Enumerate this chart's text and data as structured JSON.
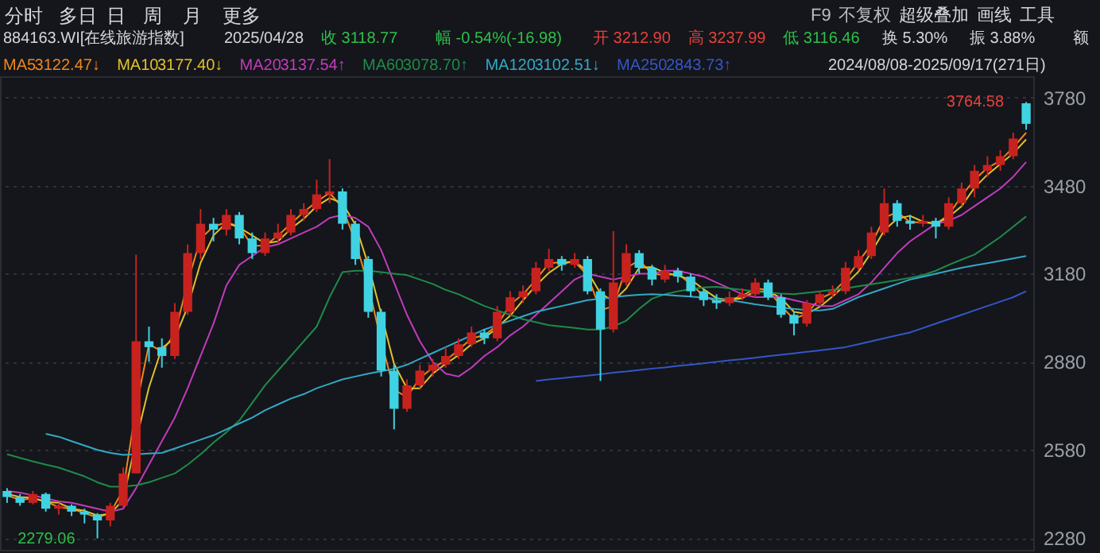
{
  "chart_data": {
    "type": "candlestick",
    "categories": [
      null,
      null,
      null,
      null,
      null,
      null,
      null,
      null,
      null,
      null,
      null,
      null,
      null,
      null,
      null,
      null,
      null,
      null,
      null,
      null,
      null,
      null,
      null,
      null,
      null,
      null,
      null,
      null,
      null,
      null,
      null,
      null,
      null,
      null,
      null,
      null,
      null,
      null,
      null,
      null,
      null,
      null,
      null,
      null,
      null,
      null,
      null,
      null,
      null,
      null,
      null,
      null,
      null,
      null,
      null,
      null,
      null,
      null,
      null,
      null,
      null,
      null,
      null,
      null,
      null,
      null,
      null,
      null,
      null,
      null,
      null,
      null,
      null,
      null,
      null,
      null,
      null,
      null,
      null,
      null
    ],
    "ohlc": [
      [
        2440,
        2450,
        2400,
        2420
      ],
      [
        2420,
        2430,
        2390,
        2400
      ],
      [
        2400,
        2440,
        2395,
        2430
      ],
      [
        2430,
        2435,
        2370,
        2380
      ],
      [
        2380,
        2400,
        2360,
        2390
      ],
      [
        2390,
        2395,
        2355,
        2370
      ],
      [
        2370,
        2380,
        2330,
        2360
      ],
      [
        2360,
        2365,
        2279.06,
        2340
      ],
      [
        2340,
        2400,
        2320,
        2390
      ],
      [
        2390,
        2520,
        2385,
        2500
      ],
      [
        2500,
        3245,
        2500,
        2950
      ],
      [
        2950,
        3000,
        2880,
        2930
      ],
      [
        2930,
        2960,
        2860,
        2900
      ],
      [
        2900,
        3080,
        2890,
        3050
      ],
      [
        3050,
        3280,
        3040,
        3250
      ],
      [
        3250,
        3400,
        3230,
        3350
      ],
      [
        3350,
        3370,
        3290,
        3330
      ],
      [
        3330,
        3400,
        3310,
        3380
      ],
      [
        3380,
        3390,
        3280,
        3300
      ],
      [
        3300,
        3320,
        3230,
        3250
      ],
      [
        3250,
        3320,
        3240,
        3300
      ],
      [
        3300,
        3350,
        3280,
        3320
      ],
      [
        3320,
        3400,
        3310,
        3380
      ],
      [
        3380,
        3420,
        3360,
        3400
      ],
      [
        3400,
        3500,
        3390,
        3450
      ],
      [
        3450,
        3570,
        3420,
        3460
      ],
      [
        3460,
        3470,
        3330,
        3350
      ],
      [
        3350,
        3360,
        3210,
        3230
      ],
      [
        3230,
        3240,
        3030,
        3050
      ],
      [
        3050,
        3060,
        2830,
        2850
      ],
      [
        2850,
        2870,
        2650,
        2720
      ],
      [
        2720,
        2820,
        2710,
        2800
      ],
      [
        2800,
        2870,
        2790,
        2850
      ],
      [
        2850,
        2890,
        2830,
        2870
      ],
      [
        2870,
        2930,
        2860,
        2900
      ],
      [
        2900,
        2960,
        2890,
        2940
      ],
      [
        2940,
        3000,
        2930,
        2980
      ],
      [
        2980,
        2990,
        2940,
        2960
      ],
      [
        2960,
        3070,
        2950,
        3050
      ],
      [
        3050,
        3120,
        3040,
        3100
      ],
      [
        3100,
        3140,
        3080,
        3120
      ],
      [
        3120,
        3220,
        3110,
        3200
      ],
      [
        3200,
        3265,
        3190,
        3230
      ],
      [
        3230,
        3240,
        3190,
        3210
      ],
      [
        3210,
        3250,
        3200,
        3230
      ],
      [
        3230,
        3240,
        3110,
        3120
      ],
      [
        3120,
        3130,
        2815,
        2990
      ],
      [
        2990,
        3325,
        2980,
        3150
      ],
      [
        3150,
        3280,
        3140,
        3250
      ],
      [
        3250,
        3260,
        3180,
        3200
      ],
      [
        3200,
        3210,
        3140,
        3160
      ],
      [
        3160,
        3210,
        3150,
        3190
      ],
      [
        3190,
        3200,
        3150,
        3170
      ],
      [
        3170,
        3180,
        3100,
        3120
      ],
      [
        3120,
        3130,
        3070,
        3090
      ],
      [
        3090,
        3110,
        3060,
        3080
      ],
      [
        3080,
        3120,
        3070,
        3100
      ],
      [
        3100,
        3130,
        3090,
        3110
      ],
      [
        3110,
        3165,
        3100,
        3150
      ],
      [
        3150,
        3160,
        3090,
        3100
      ],
      [
        3100,
        3110,
        3030,
        3040
      ],
      [
        3040,
        3050,
        2970,
        3010
      ],
      [
        3010,
        3090,
        3000,
        3080
      ],
      [
        3080,
        3120,
        3070,
        3110
      ],
      [
        3110,
        3140,
        3100,
        3120
      ],
      [
        3120,
        3220,
        3110,
        3200
      ],
      [
        3200,
        3260,
        3190,
        3240
      ],
      [
        3240,
        3340,
        3230,
        3320
      ],
      [
        3320,
        3470,
        3310,
        3420
      ],
      [
        3420,
        3430,
        3340,
        3360
      ],
      [
        3360,
        3380,
        3330,
        3350
      ],
      [
        3350,
        3380,
        3340,
        3360
      ],
      [
        3360,
        3370,
        3300,
        3340
      ],
      [
        3340,
        3440,
        3330,
        3420
      ],
      [
        3420,
        3490,
        3410,
        3470
      ],
      [
        3470,
        3550,
        3440,
        3530
      ],
      [
        3530,
        3580,
        3510,
        3550
      ],
      [
        3550,
        3600,
        3530,
        3580
      ],
      [
        3580,
        3660,
        3570,
        3640
      ],
      [
        3760,
        3764.58,
        3670,
        3690
      ]
    ],
    "colors": [
      "#3fd2e3",
      "#3fd2e3",
      "#c8221f",
      "#3fd2e3",
      "#c8221f",
      "#3fd2e3",
      "#3fd2e3",
      "#3fd2e3",
      "#c8221f",
      "#c8221f",
      "#c8221f",
      "#3fd2e3",
      "#3fd2e3",
      "#c8221f",
      "#c8221f",
      "#c8221f",
      "#3fd2e3",
      "#c8221f",
      "#3fd2e3",
      "#3fd2e3",
      "#c8221f",
      "#c8221f",
      "#c8221f",
      "#c8221f",
      "#c8221f",
      "#c8221f",
      "#3fd2e3",
      "#3fd2e3",
      "#3fd2e3",
      "#3fd2e3",
      "#3fd2e3",
      "#c8221f",
      "#c8221f",
      "#c8221f",
      "#c8221f",
      "#c8221f",
      "#c8221f",
      "#3fd2e3",
      "#c8221f",
      "#c8221f",
      "#c8221f",
      "#c8221f",
      "#c8221f",
      "#3fd2e3",
      "#c8221f",
      "#3fd2e3",
      "#3fd2e3",
      "#c8221f",
      "#c8221f",
      "#3fd2e3",
      "#3fd2e3",
      "#c8221f",
      "#3fd2e3",
      "#3fd2e3",
      "#3fd2e3",
      "#3fd2e3",
      "#c8221f",
      "#c8221f",
      "#c8221f",
      "#3fd2e3",
      "#3fd2e3",
      "#3fd2e3",
      "#c8221f",
      "#c8221f",
      "#c8221f",
      "#c8221f",
      "#c8221f",
      "#c8221f",
      "#c8221f",
      "#3fd2e3",
      "#3fd2e3",
      "#c8221f",
      "#3fd2e3",
      "#c8221f",
      "#c8221f",
      "#c8221f",
      "#c8221f",
      "#c8221f",
      "#c8221f",
      "#3fd2e3"
    ],
    "series": [
      {
        "name": "MA5",
        "type": "line",
        "color": "#f0861c",
        "values": [
          2425,
          2410,
          2415,
          2405,
          2385,
          2380,
          2365,
          2350,
          2365,
          2445,
          2725,
          2940,
          2915,
          2975,
          3150,
          3300,
          3340,
          3355,
          3340,
          3275,
          3275,
          3310,
          3350,
          3390,
          3425,
          3455,
          3405,
          3290,
          3140,
          2950,
          2785,
          2760,
          2825,
          2860,
          2885,
          2920,
          2960,
          2970,
          3005,
          3075,
          3110,
          3160,
          3215,
          3220,
          3220,
          3175,
          3055,
          3070,
          3200,
          3225,
          3180,
          3175,
          3180,
          3145,
          3105,
          3085,
          3090,
          3105,
          3130,
          3125,
          3070,
          3025,
          3045,
          3095,
          3115,
          3160,
          3220,
          3280,
          3370,
          3390,
          3355,
          3355,
          3350,
          3380,
          3445,
          3500,
          3540,
          3565,
          3610,
          3660
        ]
      },
      {
        "name": "MA10",
        "type": "line",
        "color": "#e3c02b",
        "values": [
          2430,
          2420,
          2417,
          2403,
          2400,
          2380,
          2373,
          2357,
          2363,
          2410,
          2613,
          2793,
          2927,
          2960,
          3067,
          3217,
          3310,
          3353,
          3337,
          3310,
          3283,
          3290,
          3333,
          3367,
          3410,
          3437,
          3420,
          3347,
          3210,
          3043,
          2873,
          2790,
          2790,
          2840,
          2873,
          2903,
          2940,
          2960,
          2997,
          3037,
          3090,
          3140,
          3183,
          3213,
          3223,
          3187,
          3113,
          3087,
          3130,
          3200,
          3203,
          3183,
          3173,
          3160,
          3127,
          3097,
          3090,
          3097,
          3120,
          3120,
          3097,
          3050,
          3043,
          3067,
          3103,
          3143,
          3187,
          3253,
          3327,
          3367,
          3377,
          3357,
          3350,
          3373,
          3410,
          3473,
          3517,
          3553,
          3590,
          3637
        ]
      },
      {
        "name": "MA20",
        "type": "line",
        "color": "#c23bbd",
        "values": [
          2440,
          2435,
          2425,
          2415,
          2405,
          2400,
          2390,
          2380,
          2370,
          2380,
          2450,
          2530,
          2610,
          2690,
          2790,
          2900,
          3010,
          3140,
          3210,
          3240,
          3270,
          3280,
          3300,
          3320,
          3340,
          3370,
          3380,
          3370,
          3340,
          3260,
          3150,
          3040,
          2950,
          2880,
          2840,
          2830,
          2860,
          2900,
          2930,
          2970,
          3000,
          3040,
          3080,
          3120,
          3160,
          3180,
          3170,
          3160,
          3170,
          3180,
          3180,
          3190,
          3190,
          3180,
          3170,
          3150,
          3130,
          3110,
          3100,
          3100,
          3100,
          3090,
          3080,
          3070,
          3070,
          3090,
          3110,
          3150,
          3200,
          3250,
          3290,
          3320,
          3350,
          3360,
          3380,
          3410,
          3440,
          3470,
          3510,
          3560
        ]
      },
      {
        "name": "MA60",
        "type": "line",
        "color": "#1f8a4a",
        "values": [
          2565,
          2553,
          2541,
          2530,
          2520,
          2505,
          2490,
          2470,
          2455,
          2455,
          2460,
          2470,
          2485,
          2500,
          2530,
          2565,
          2605,
          2640,
          2680,
          2740,
          2800,
          2850,
          2900,
          2950,
          3000,
          3100,
          3185,
          3190,
          3190,
          3185,
          3180,
          3175,
          3160,
          3145,
          3125,
          3110,
          3090,
          3070,
          3055,
          3040,
          3025,
          3015,
          3005,
          3000,
          2995,
          2990,
          2990,
          3000,
          3020,
          3060,
          3095,
          3110,
          3120,
          3128,
          3133,
          3135,
          3130,
          3125,
          3120,
          3115,
          3112,
          3110,
          3115,
          3120,
          3125,
          3130,
          3137,
          3144,
          3151,
          3158,
          3166,
          3175,
          3190,
          3210,
          3228,
          3245,
          3275,
          3305,
          3340,
          3375
        ]
      },
      {
        "name": "MA120",
        "type": "line",
        "color": "#33a8c6",
        "values": [
          null,
          null,
          null,
          2635,
          2625,
          2610,
          2595,
          2580,
          2570,
          2563,
          2565,
          2568,
          2570,
          2585,
          2600,
          2615,
          2630,
          2650,
          2670,
          2690,
          2715,
          2735,
          2755,
          2770,
          2790,
          2805,
          2820,
          2830,
          2840,
          2848,
          2856,
          2870,
          2890,
          2910,
          2930,
          2950,
          2970,
          2990,
          3005,
          3020,
          3035,
          3050,
          3060,
          3070,
          3080,
          3090,
          3095,
          3100,
          3105,
          3108,
          3110,
          3108,
          3105,
          3102,
          3098,
          3095,
          3090,
          3083,
          3076,
          3070,
          3065,
          3060,
          3056,
          3055,
          3060,
          3080,
          3100,
          3115,
          3130,
          3145,
          3160,
          3170,
          3180,
          3190,
          3200,
          3208,
          3216,
          3224,
          3232,
          3240
        ]
      },
      {
        "name": "MA250",
        "type": "line",
        "color": "#3556c9",
        "values": [
          null,
          null,
          null,
          null,
          null,
          null,
          null,
          null,
          null,
          null,
          null,
          null,
          null,
          null,
          null,
          null,
          null,
          null,
          null,
          null,
          null,
          null,
          null,
          null,
          null,
          null,
          null,
          null,
          null,
          null,
          null,
          null,
          null,
          null,
          null,
          null,
          null,
          null,
          null,
          null,
          null,
          2815,
          2820,
          2824,
          2829,
          2833,
          2838,
          2843,
          2847,
          2852,
          2857,
          2861,
          2866,
          2870,
          2875,
          2880,
          2885,
          2889,
          2894,
          2899,
          2904,
          2909,
          2914,
          2919,
          2924,
          2930,
          2940,
          2950,
          2960,
          2970,
          2980,
          2995,
          3010,
          3025,
          3040,
          3055,
          3070,
          3085,
          3100,
          3120
        ]
      }
    ],
    "ylim": [
      2240,
      3852
    ],
    "yticks": [
      3780,
      3480,
      3180,
      2880,
      2580,
      2280
    ],
    "grid": "y",
    "tick_labels": "y",
    "legend": "top left",
    "marker": "none",
    "line_style": "solid",
    "annotations": [
      "分时",
      "多日",
      "日",
      "周",
      "月",
      "更多",
      "F9",
      "不复权",
      "超级叠加",
      "画线",
      "工具",
      "884163.WI[在线旅游指数]",
      "2025/04/28",
      "收 3118.77",
      "幅 -0.54%(-16.98)",
      "开 3212.90",
      "高 3237.99",
      "低 3116.46",
      "换 5.30%",
      "振 3.88%",
      "额",
      "3122.47↓",
      "3177.40↓",
      "3137.54↑",
      "3078.70↑",
      "3102.51↓",
      "2843.73↑",
      "2024/08/08-2025/09/17(271日)",
      "3764.58",
      "2279.06"
    ]
  }
}
